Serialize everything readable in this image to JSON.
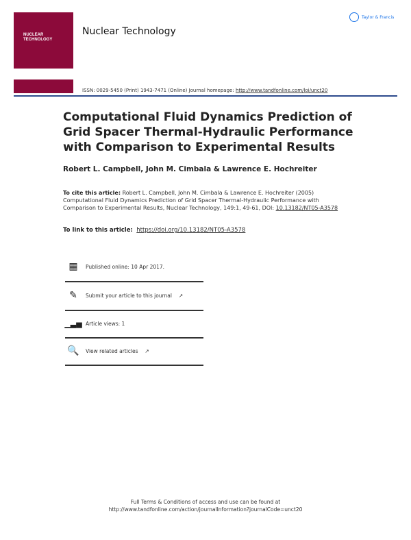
{
  "header": {
    "cover": {
      "title_line1": "NUCLEAR",
      "title_line2": "TECHNOLOGY",
      "brand_color": "#8c0a3a"
    },
    "publisher_logo": "Taylor & Francis",
    "journal_name": "Nuclear Technology",
    "issn_text": "ISSN: 0029-5450 (Print) 1943-7471 (Online) Journal homepage: ",
    "homepage_url": "http://www.tandfonline.com/loi/unct20",
    "rule_color": "#2c4a8c"
  },
  "article": {
    "title": "Computational Fluid Dynamics Prediction of Grid Spacer Thermal-Hydraulic Performance with Comparison to Experimental Results",
    "authors": "Robert L. Campbell, John M. Cimbala & Lawrence E. Hochreiter",
    "cite_label": "To cite this article:",
    "cite_text": " Robert L. Campbell, John M. Cimbala & Lawrence E. Hochreiter (2005) Computational Fluid Dynamics Prediction of Grid Spacer Thermal-Hydraulic Performance with Comparison to Experimental Results, Nuclear Technology, 149:1, 49-61, DOI: ",
    "cite_doi": "10.13182/NT05-A3578",
    "link_label": "To link to this article:",
    "link_url": "https://doi.org/10.13182/NT05-A3578"
  },
  "items": [
    {
      "icon": "calendar-icon",
      "label": "Published online: 10 Apr 2017."
    },
    {
      "icon": "edit-icon",
      "label": "Submit your article to this journal"
    },
    {
      "icon": "bar-chart-icon",
      "label": "Article views: 1"
    },
    {
      "icon": "search-document-icon",
      "label": "View related articles"
    }
  ],
  "footer": {
    "line1": "Full Terms & Conditions of access and use can be found at",
    "line2": "http://www.tandfonline.com/action/journalInformation?journalCode=unct20"
  }
}
